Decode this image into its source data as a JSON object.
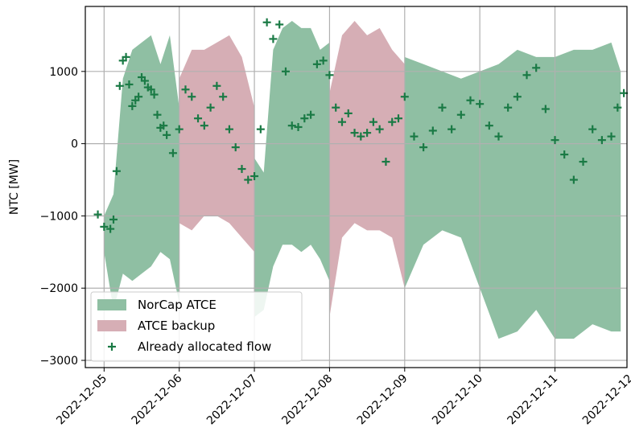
{
  "chart_data": {
    "type": "area",
    "ylabel": "NTC [MW]",
    "xlabel": "",
    "title": "",
    "ylim": [
      -3100,
      1900
    ],
    "xlim": [
      "2022-12-04T18:00",
      "2022-12-11T23:00"
    ],
    "yticks": [
      1000,
      0,
      -1000,
      -2000,
      -3000
    ],
    "ytick_labels": [
      "1000",
      "0",
      "−1000",
      "−2000",
      "−3000"
    ],
    "xticks": [
      "2022-12-05",
      "2022-12-06",
      "2022-12-07",
      "2022-12-08",
      "2022-12-09",
      "2022-12-10",
      "2022-12-11",
      "2022-12-12"
    ],
    "grid": true,
    "legend_position": "lower-left",
    "colors": {
      "norcap": "#8fbfa3",
      "backup": "#d6aeb5",
      "flow": "#1a7a45"
    },
    "series": [
      {
        "name": "NorCap ATCE",
        "kind": "band",
        "segments": [
          {
            "x": [
              "2022-12-05T00:00",
              "2022-12-05T03:00",
              "2022-12-05T06:00",
              "2022-12-05T09:00",
              "2022-12-05T12:00",
              "2022-12-05T15:00",
              "2022-12-05T18:00",
              "2022-12-05T21:00",
              "2022-12-06T00:00"
            ],
            "upper": [
              -1000,
              -700,
              900,
              1300,
              1400,
              1500,
              1100,
              1500,
              500
            ],
            "lower": [
              -1500,
              -2300,
              -1800,
              -1900,
              -1800,
              -1700,
              -1500,
              -1600,
              -2200
            ]
          },
          {
            "x": [
              "2022-12-07T00:00",
              "2022-12-07T03:00",
              "2022-12-07T06:00",
              "2022-12-07T09:00",
              "2022-12-07T12:00",
              "2022-12-07T15:00",
              "2022-12-07T18:00",
              "2022-12-07T21:00",
              "2022-12-08T00:00"
            ],
            "upper": [
              -200,
              -400,
              1300,
              1600,
              1700,
              1600,
              1600,
              1300,
              1400
            ],
            "lower": [
              -2400,
              -2300,
              -1700,
              -1400,
              -1400,
              -1500,
              -1400,
              -1600,
              -1900
            ]
          },
          {
            "x": [
              "2022-12-09T00:00",
              "2022-12-09T06:00",
              "2022-12-09T12:00",
              "2022-12-09T18:00",
              "2022-12-10T00:00",
              "2022-12-10T06:00",
              "2022-12-10T12:00",
              "2022-12-10T18:00",
              "2022-12-11T00:00",
              "2022-12-11T06:00",
              "2022-12-11T12:00",
              "2022-12-11T18:00",
              "2022-12-11T21:00"
            ],
            "upper": [
              1200,
              1100,
              1000,
              900,
              1000,
              1100,
              1300,
              1200,
              1200,
              1300,
              1300,
              1400,
              1000
            ],
            "lower": [
              -2000,
              -1400,
              -1200,
              -1300,
              -2000,
              -2700,
              -2600,
              -2300,
              -2700,
              -2700,
              -2500,
              -2600,
              -2600
            ]
          }
        ]
      },
      {
        "name": "ATCE backup",
        "kind": "band",
        "segments": [
          {
            "x": [
              "2022-12-06T00:00",
              "2022-12-06T04:00",
              "2022-12-06T08:00",
              "2022-12-06T12:00",
              "2022-12-06T16:00",
              "2022-12-06T20:00",
              "2022-12-07T00:00"
            ],
            "upper": [
              900,
              1300,
              1300,
              1400,
              1500,
              1200,
              500
            ],
            "lower": [
              -1100,
              -1200,
              -1000,
              -1000,
              -1100,
              -1300,
              -1500
            ]
          },
          {
            "x": [
              "2022-12-08T00:00",
              "2022-12-08T04:00",
              "2022-12-08T08:00",
              "2022-12-08T12:00",
              "2022-12-08T16:00",
              "2022-12-08T20:00",
              "2022-12-09T00:00"
            ],
            "upper": [
              700,
              1500,
              1700,
              1500,
              1600,
              1300,
              1100
            ],
            "lower": [
              -2400,
              -1300,
              -1100,
              -1200,
              -1200,
              -1300,
              -2000
            ]
          }
        ]
      },
      {
        "name": "Already allocated flow",
        "kind": "scatter",
        "x": [
          "2022-12-04T22:00",
          "2022-12-05T00:00",
          "2022-12-05T02:00",
          "2022-12-05T03:00",
          "2022-12-05T04:00",
          "2022-12-05T05:00",
          "2022-12-05T06:00",
          "2022-12-05T07:00",
          "2022-12-05T08:00",
          "2022-12-05T09:00",
          "2022-12-05T10:00",
          "2022-12-05T11:00",
          "2022-12-05T12:00",
          "2022-12-05T13:00",
          "2022-12-05T14:00",
          "2022-12-05T15:00",
          "2022-12-05T16:00",
          "2022-12-05T17:00",
          "2022-12-05T18:00",
          "2022-12-05T19:00",
          "2022-12-05T20:00",
          "2022-12-05T22:00",
          "2022-12-06T00:00",
          "2022-12-06T02:00",
          "2022-12-06T04:00",
          "2022-12-06T06:00",
          "2022-12-06T08:00",
          "2022-12-06T10:00",
          "2022-12-06T12:00",
          "2022-12-06T14:00",
          "2022-12-06T16:00",
          "2022-12-06T18:00",
          "2022-12-06T20:00",
          "2022-12-06T22:00",
          "2022-12-07T00:00",
          "2022-12-07T02:00",
          "2022-12-07T04:00",
          "2022-12-07T06:00",
          "2022-12-07T08:00",
          "2022-12-07T10:00",
          "2022-12-07T12:00",
          "2022-12-07T14:00",
          "2022-12-07T16:00",
          "2022-12-07T18:00",
          "2022-12-07T20:00",
          "2022-12-07T22:00",
          "2022-12-08T00:00",
          "2022-12-08T02:00",
          "2022-12-08T04:00",
          "2022-12-08T06:00",
          "2022-12-08T08:00",
          "2022-12-08T10:00",
          "2022-12-08T12:00",
          "2022-12-08T14:00",
          "2022-12-08T16:00",
          "2022-12-08T18:00",
          "2022-12-08T20:00",
          "2022-12-08T22:00",
          "2022-12-09T00:00",
          "2022-12-09T03:00",
          "2022-12-09T06:00",
          "2022-12-09T09:00",
          "2022-12-09T12:00",
          "2022-12-09T15:00",
          "2022-12-09T18:00",
          "2022-12-09T21:00",
          "2022-12-10T00:00",
          "2022-12-10T03:00",
          "2022-12-10T06:00",
          "2022-12-10T09:00",
          "2022-12-10T12:00",
          "2022-12-10T15:00",
          "2022-12-10T18:00",
          "2022-12-10T21:00",
          "2022-12-11T00:00",
          "2022-12-11T03:00",
          "2022-12-11T06:00",
          "2022-12-11T09:00",
          "2022-12-11T12:00",
          "2022-12-11T15:00",
          "2022-12-11T18:00",
          "2022-12-11T20:00",
          "2022-12-11T22:00"
        ],
        "y": [
          -980,
          -1150,
          -1180,
          -1050,
          -380,
          800,
          1150,
          1200,
          820,
          520,
          600,
          650,
          920,
          870,
          780,
          750,
          680,
          400,
          220,
          250,
          120,
          -130,
          200,
          750,
          650,
          350,
          250,
          500,
          800,
          650,
          200,
          -50,
          -350,
          -500,
          -450,
          200,
          1680,
          1450,
          1650,
          1000,
          250,
          230,
          350,
          400,
          1100,
          1150,
          950,
          500,
          300,
          420,
          150,
          100,
          150,
          300,
          200,
          -250,
          300,
          350,
          650,
          100,
          -50,
          180,
          500,
          200,
          400,
          600,
          550,
          250,
          100,
          500,
          650,
          950,
          1050,
          480,
          50,
          -150,
          -500,
          -250,
          200,
          50,
          100,
          500,
          700
        ]
      }
    ],
    "legend": [
      "NorCap ATCE",
      "ATCE backup",
      "Already allocated flow"
    ]
  }
}
